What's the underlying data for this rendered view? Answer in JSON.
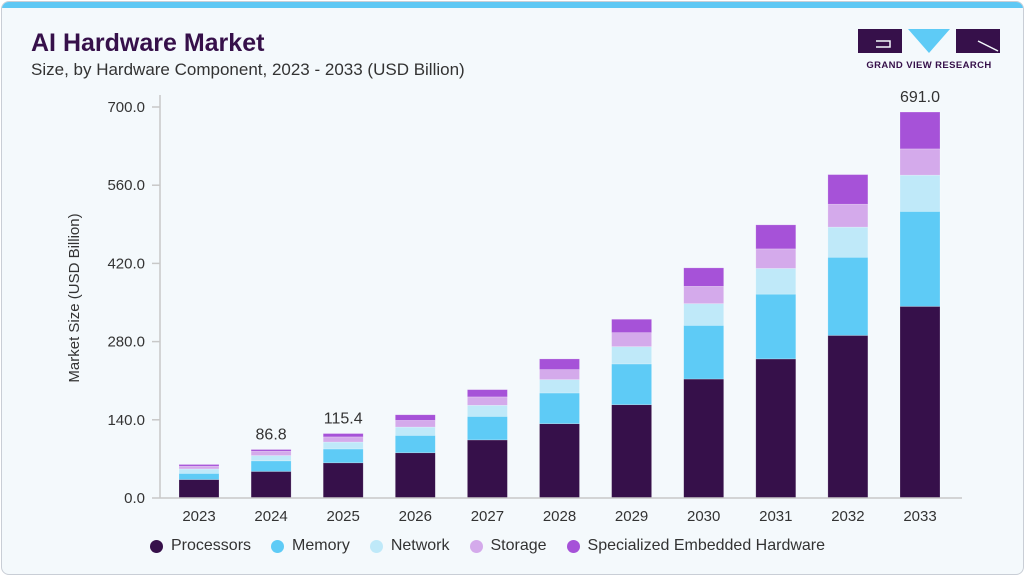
{
  "header": {
    "title": "AI Hardware Market",
    "subtitle": "Size, by Hardware Component, 2023 - 2033 (USD Billion)"
  },
  "logo": {
    "text": "GRAND VIEW RESEARCH",
    "letters": "GVR"
  },
  "chart_data": {
    "type": "bar",
    "stacked": true,
    "title": "AI Hardware Market",
    "subtitle": "Size, by Hardware Component, 2023 - 2033 (USD Billion)",
    "xlabel": "",
    "ylabel": "Market Size (USD Billion)",
    "ylim": [
      0,
      700
    ],
    "yticks": [
      "0.0",
      "140.0",
      "280.0",
      "420.0",
      "560.0",
      "700.0"
    ],
    "grid": false,
    "legend": "bottom",
    "categories": [
      "2023",
      "2024",
      "2025",
      "2026",
      "2027",
      "2028",
      "2029",
      "2030",
      "2031",
      "2032",
      "2033"
    ],
    "series": [
      {
        "name": "Processors",
        "color": "#36104a",
        "values": [
          33,
          47.5,
          63.0,
          81,
          104,
          133,
          167,
          213,
          249,
          291,
          343
        ]
      },
      {
        "name": "Memory",
        "color": "#5ecbf6",
        "values": [
          11,
          19.0,
          24.8,
          31,
          42,
          55,
          73,
          96,
          116,
          140,
          170
        ]
      },
      {
        "name": "Network",
        "color": "#bfe9f9",
        "values": [
          8,
          9.5,
          12.4,
          15,
          20,
          24,
          31,
          39,
          46,
          54,
          65
        ]
      },
      {
        "name": "Storage",
        "color": "#d4aaeb",
        "values": [
          5,
          7.8,
          9.2,
          12,
          15,
          18,
          25,
          31,
          35,
          41,
          47
        ]
      },
      {
        "name": "Specialized Embedded Hardware",
        "color": "#a652d8",
        "values": [
          3,
          3.0,
          6.0,
          10,
          13,
          19,
          24,
          33,
          43,
          53,
          66
        ]
      }
    ],
    "data_labels": [
      {
        "category": "2024",
        "text": "86.8"
      },
      {
        "category": "2025",
        "text": "115.4"
      },
      {
        "category": "2033",
        "text": "691.0"
      }
    ]
  }
}
